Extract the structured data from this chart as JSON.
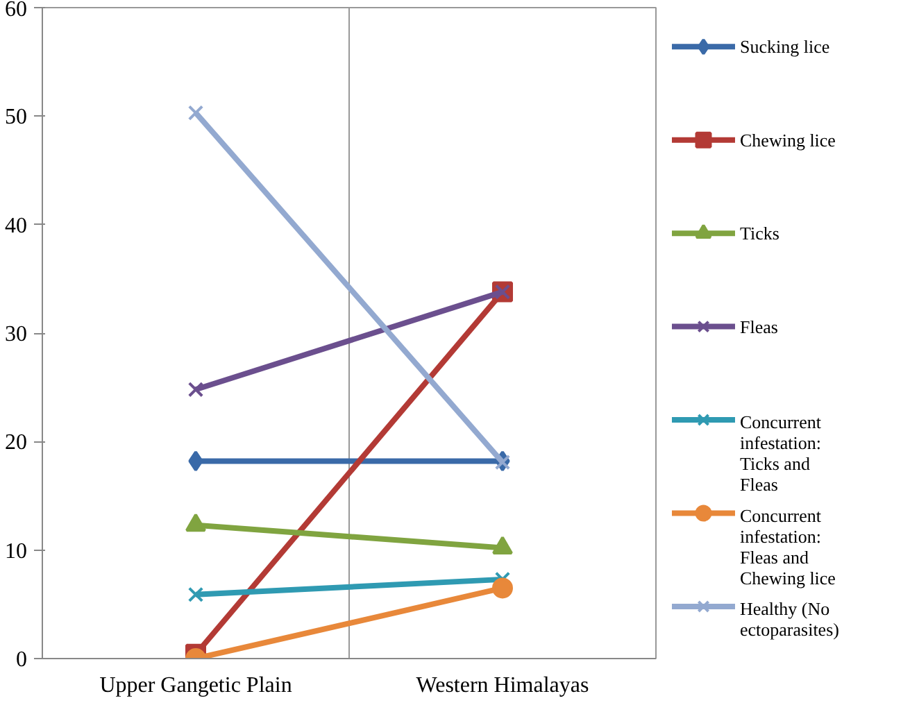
{
  "chart_data": {
    "type": "line",
    "categories": [
      "Upper Gangetic Plain",
      "Western Himalayas"
    ],
    "ylim": [
      0,
      60
    ],
    "yticks": [
      0,
      10,
      20,
      30,
      40,
      50,
      60
    ],
    "grid": "x",
    "legend": "right",
    "series": [
      {
        "name": "Sucking lice",
        "color": "#3a6aa8",
        "marker": "diamond",
        "values": [
          18.2,
          18.2
        ]
      },
      {
        "name": "Chewing lice",
        "color": "#b33a35",
        "marker": "square",
        "values": [
          0.4,
          33.8
        ]
      },
      {
        "name": "Ticks",
        "color": "#80a440",
        "marker": "triangle",
        "values": [
          12.3,
          10.2
        ]
      },
      {
        "name": "Fleas",
        "color": "#6b4f8e",
        "marker": "cross",
        "values": [
          24.8,
          33.8
        ]
      },
      {
        "name": "Concurrent infestation: Ticks and Fleas",
        "color": "#2f9ab2",
        "marker": "cross",
        "values": [
          5.9,
          7.3
        ]
      },
      {
        "name": "Concurrent infestation: Fleas and Chewing lice",
        "color": "#e8883a",
        "marker": "circle",
        "values": [
          0,
          6.5
        ]
      },
      {
        "name": "Healthy (No ectoparasites)",
        "color": "#93a9d0",
        "marker": "cross",
        "values": [
          50.3,
          18.1
        ]
      }
    ]
  }
}
